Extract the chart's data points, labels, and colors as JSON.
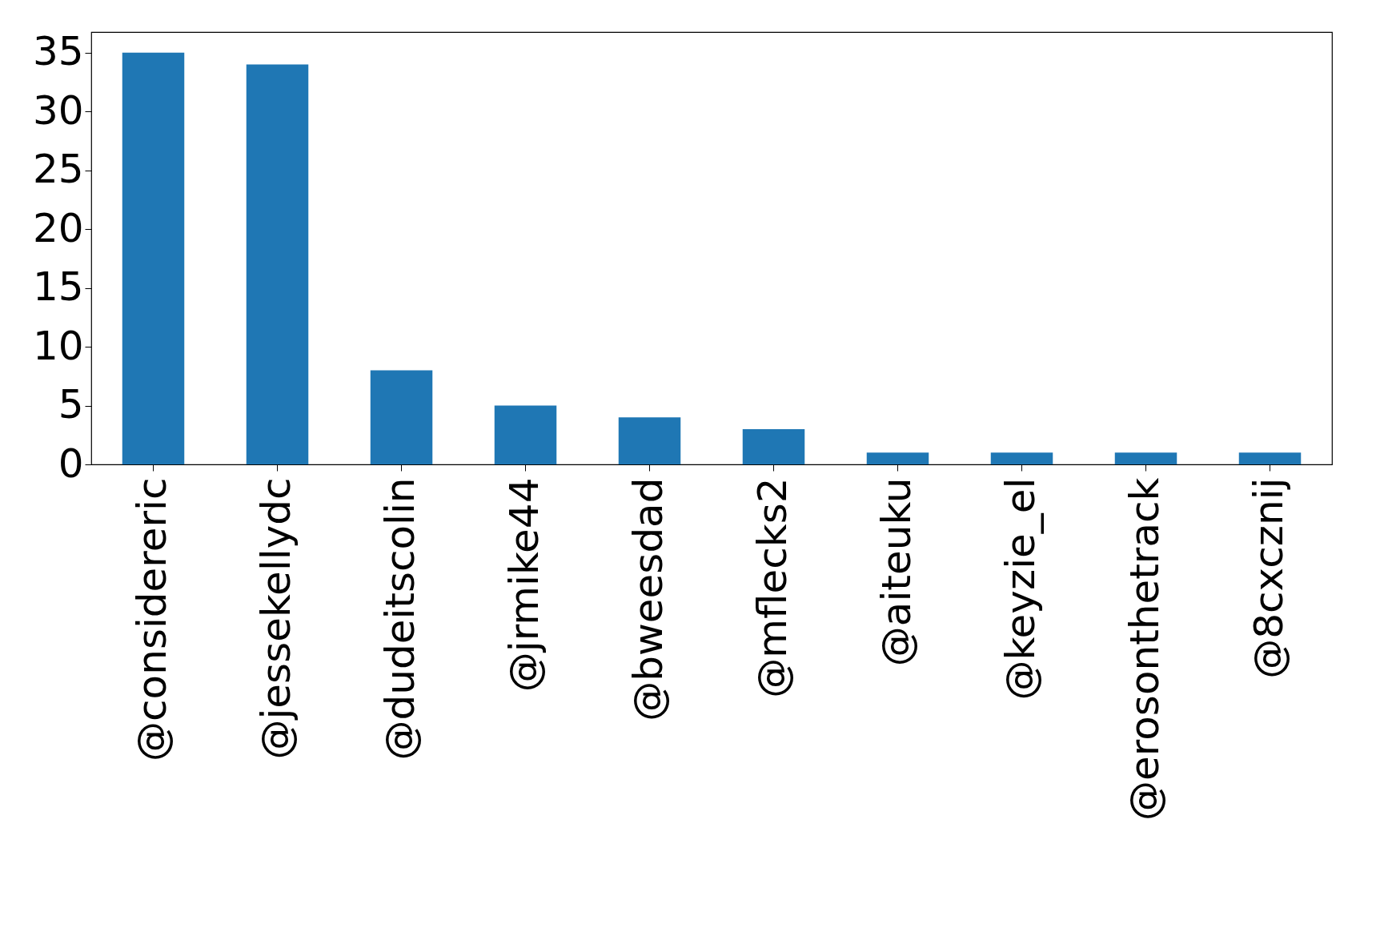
{
  "chart_data": {
    "type": "bar",
    "categories": [
      "@considereric",
      "@jessekellydc",
      "@dudeitscolin",
      "@jrmike44",
      "@bweesdad",
      "@mflecks2",
      "@aiteuku",
      "@keyzie_el",
      "@erosonthetrack",
      "@8cxcznij"
    ],
    "values": [
      35,
      34,
      8,
      5,
      4,
      3,
      1,
      1,
      1,
      1
    ],
    "color": "#1f77b4",
    "ylim": [
      0,
      36.75
    ],
    "yticks": [
      0,
      5,
      10,
      15,
      20,
      25,
      30,
      35
    ],
    "grid": false
  }
}
